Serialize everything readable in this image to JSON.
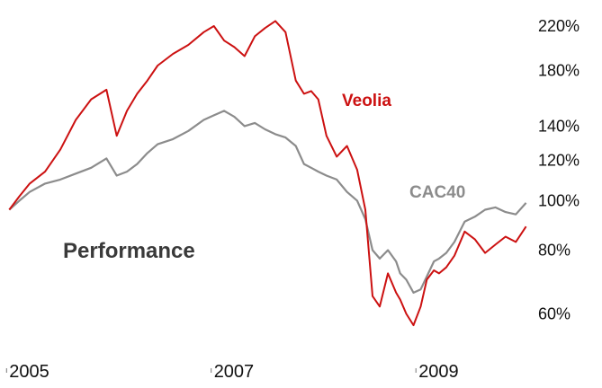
{
  "chart_data": {
    "type": "line",
    "title": "Performance",
    "xlabel": "",
    "ylabel": "",
    "y_scale": "log",
    "ylim": [
      0.53,
      2.3
    ],
    "xlim": [
      2004.98,
      2010.08
    ],
    "grid": false,
    "legend": "inline labels",
    "x_ticks": [
      {
        "value": 2005,
        "label": "2005"
      },
      {
        "value": 2007,
        "label": "2007"
      },
      {
        "value": 2009,
        "label": "2009"
      }
    ],
    "y_ticks": [
      {
        "value": 2.2,
        "label": "220%"
      },
      {
        "value": 1.8,
        "label": "180%"
      },
      {
        "value": 1.4,
        "label": "140%"
      },
      {
        "value": 1.2,
        "label": "120%"
      },
      {
        "value": 1.0,
        "label": "100%"
      },
      {
        "value": 0.8,
        "label": "80%"
      },
      {
        "value": 0.6,
        "label": "60%"
      }
    ],
    "series": [
      {
        "name": "Veolia",
        "color": "#cc1111",
        "x": [
          2005.0,
          2005.1,
          2005.2,
          2005.35,
          2005.5,
          2005.65,
          2005.8,
          2005.95,
          2006.05,
          2006.15,
          2006.25,
          2006.35,
          2006.45,
          2006.6,
          2006.75,
          2006.9,
          2007.0,
          2007.1,
          2007.2,
          2007.3,
          2007.4,
          2007.5,
          2007.6,
          2007.7,
          2007.8,
          2007.88,
          2007.95,
          2008.02,
          2008.1,
          2008.2,
          2008.3,
          2008.4,
          2008.48,
          2008.55,
          2008.62,
          2008.7,
          2008.78,
          2008.82,
          2008.88,
          2008.95,
          2009.02,
          2009.08,
          2009.15,
          2009.2,
          2009.27,
          2009.35,
          2009.45,
          2009.55,
          2009.65,
          2009.75,
          2009.85,
          2009.95,
          2010.05
        ],
        "values": [
          0.96,
          1.02,
          1.08,
          1.14,
          1.26,
          1.44,
          1.58,
          1.65,
          1.34,
          1.5,
          1.62,
          1.72,
          1.84,
          1.94,
          2.02,
          2.14,
          2.2,
          2.06,
          2.0,
          1.92,
          2.1,
          2.18,
          2.25,
          2.14,
          1.72,
          1.62,
          1.64,
          1.58,
          1.34,
          1.22,
          1.28,
          1.15,
          0.96,
          0.65,
          0.62,
          0.72,
          0.66,
          0.64,
          0.6,
          0.57,
          0.62,
          0.7,
          0.73,
          0.72,
          0.74,
          0.78,
          0.87,
          0.84,
          0.79,
          0.82,
          0.85,
          0.83,
          0.89
        ]
      },
      {
        "name": "CAC40",
        "color": "#8c8c8c",
        "x": [
          2005.0,
          2005.1,
          2005.2,
          2005.35,
          2005.5,
          2005.65,
          2005.8,
          2005.95,
          2006.05,
          2006.15,
          2006.25,
          2006.35,
          2006.45,
          2006.6,
          2006.75,
          2006.9,
          2007.0,
          2007.1,
          2007.2,
          2007.3,
          2007.4,
          2007.5,
          2007.6,
          2007.7,
          2007.8,
          2007.88,
          2007.95,
          2008.02,
          2008.1,
          2008.2,
          2008.3,
          2008.4,
          2008.48,
          2008.55,
          2008.62,
          2008.7,
          2008.78,
          2008.82,
          2008.88,
          2008.95,
          2009.02,
          2009.08,
          2009.15,
          2009.2,
          2009.27,
          2009.35,
          2009.45,
          2009.55,
          2009.65,
          2009.75,
          2009.85,
          2009.95,
          2010.05
        ],
        "values": [
          0.96,
          1.0,
          1.04,
          1.08,
          1.1,
          1.13,
          1.16,
          1.21,
          1.12,
          1.14,
          1.18,
          1.24,
          1.29,
          1.32,
          1.37,
          1.44,
          1.47,
          1.5,
          1.46,
          1.4,
          1.42,
          1.38,
          1.35,
          1.33,
          1.28,
          1.18,
          1.16,
          1.14,
          1.12,
          1.1,
          1.04,
          1.0,
          0.92,
          0.8,
          0.77,
          0.8,
          0.76,
          0.72,
          0.7,
          0.66,
          0.67,
          0.71,
          0.76,
          0.77,
          0.79,
          0.83,
          0.91,
          0.93,
          0.96,
          0.97,
          0.95,
          0.94,
          0.99
        ]
      }
    ]
  }
}
